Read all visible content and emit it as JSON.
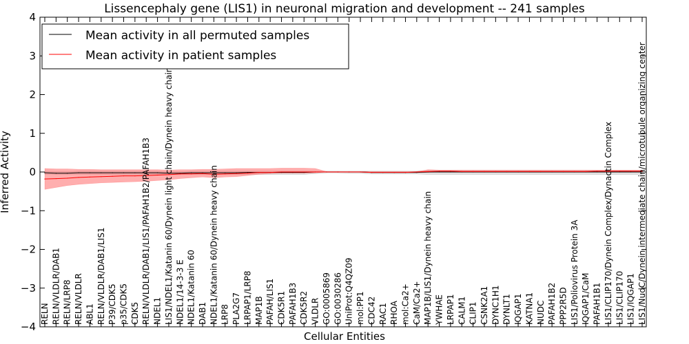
{
  "chart_data": {
    "type": "line",
    "title": "Lissencephaly gene (LIS1) in neuronal migration and development -- 241 samples",
    "xlabel": "Cellular Entities",
    "ylabel": "Inferred Activity",
    "ylim": [
      -4,
      4
    ],
    "yticks": [
      "4",
      "3",
      "2",
      "1",
      "0",
      "−1",
      "−2",
      "−3",
      "−4"
    ],
    "legend_position": "top-left",
    "categories": [
      "RELN",
      "RELN/VLDLR/DAB1",
      "RELN/LRP8",
      "RELN/VLDLR",
      "ABL1",
      "RELN/VLDLR/DAB1/LIS1",
      "P39/CDK5",
      "p35/CDK5",
      "CDK5",
      "RELN/VLDLR/DAB1/LIS1/PAFAH1B2/PAFAH1B3",
      "NDEL1",
      "LIS1/NDEL1/Katanin 60/Dynein light chain/Dynein heavy chain",
      "NDEL1/14-3-3 E",
      "NDEL1/Katanin 60",
      "DAB1",
      "NDEL1/Katanin 60/Dynein heavy chain",
      "LRP8",
      "PLA2G7",
      "LRPAP1/LRP8",
      "MAP1B",
      "PAFAH/LIS1",
      "CDK5R1",
      "PAFAH1B3",
      "CDK5R2",
      "VLDLR",
      "GO:0005869",
      "GO:0030286",
      "UniProt:Q4QZ09",
      "mol:PP1",
      "CDC42",
      "RAC1",
      "RHOA",
      "mol:Ca2+",
      "CaM/Ca2+",
      "MAP1B/LIS1/Dynein heavy chain",
      "YWHAE",
      "LRPAP1",
      "CALM1",
      "CLIP1",
      "CSNK2A1",
      "DYNC1H1",
      "DYNLT1",
      "IQGAP1",
      "KATNA1",
      "NUDC",
      "PAFAH1B2",
      "PPP2R5D",
      "LIS1/Poliovirus Protein 3A",
      "IQGAP1/CaM",
      "PAFAH1B1",
      "LIS1/CLIP170/Dynein Complex/Dynactin Complex",
      "LIS1/CLIP170",
      "LIS1/IQGAP1",
      "LIS1/NudC/Dynein intermediate chain/microtubule organizing center"
    ],
    "series": [
      {
        "name": "Mean activity in all permuted samples",
        "color": "#000000",
        "values": [
          -0.02,
          -0.03,
          -0.03,
          -0.02,
          -0.02,
          -0.02,
          -0.02,
          -0.02,
          -0.02,
          -0.02,
          -0.02,
          -0.03,
          -0.03,
          -0.02,
          -0.02,
          -0.02,
          -0.02,
          -0.02,
          -0.01,
          -0.01,
          -0.01,
          -0.01,
          -0.01,
          -0.01,
          0,
          0,
          0,
          0,
          0,
          -0.01,
          -0.01,
          -0.01,
          -0.01,
          -0.01,
          0,
          0,
          0,
          0,
          0,
          0,
          0,
          0,
          0,
          0,
          0,
          0,
          0,
          0,
          0,
          0,
          0,
          0,
          0,
          0
        ],
        "band_lower": [
          -0.06,
          -0.06,
          -0.06,
          -0.06,
          -0.06,
          -0.06,
          -0.06,
          -0.06,
          -0.06,
          -0.06,
          -0.06,
          -0.07,
          -0.07,
          -0.06,
          -0.06,
          -0.06,
          -0.06,
          -0.06,
          -0.06,
          -0.06,
          -0.06,
          -0.06,
          -0.06,
          -0.06,
          -0.04,
          -0.02,
          -0.02,
          -0.03,
          -0.03,
          -0.05,
          -0.05,
          -0.05,
          -0.05,
          -0.05,
          -0.06,
          -0.06,
          -0.06,
          -0.06,
          -0.06,
          -0.06,
          -0.06,
          -0.06,
          -0.06,
          -0.06,
          -0.06,
          -0.06,
          -0.06,
          -0.06,
          -0.06,
          -0.06,
          -0.06,
          -0.06,
          -0.06,
          -0.06
        ],
        "band_upper": [
          0.02,
          0.01,
          0.01,
          0.02,
          0.02,
          0.02,
          0.02,
          0.02,
          0.02,
          0.02,
          0.02,
          0.01,
          0.01,
          0.02,
          0.02,
          0.02,
          0.02,
          0.02,
          0.02,
          0.02,
          0.02,
          0.02,
          0.02,
          0.02,
          0.02,
          0.02,
          0.02,
          0.02,
          0.02,
          0.02,
          0.02,
          0.02,
          0.02,
          0.02,
          0.04,
          0.04,
          0.04,
          0.04,
          0.04,
          0.04,
          0.04,
          0.04,
          0.04,
          0.04,
          0.04,
          0.04,
          0.04,
          0.04,
          0.04,
          0.04,
          0.04,
          0.04,
          0.04,
          0.04
        ]
      },
      {
        "name": "Mean activity in patient samples",
        "color": "#ff0000",
        "values": [
          -0.18,
          -0.17,
          -0.16,
          -0.14,
          -0.13,
          -0.12,
          -0.11,
          -0.1,
          -0.1,
          -0.09,
          -0.08,
          -0.07,
          -0.05,
          -0.05,
          -0.04,
          -0.06,
          -0.05,
          -0.04,
          -0.03,
          -0.01,
          -0.01,
          0,
          0,
          0,
          0,
          0,
          0,
          0,
          0,
          -0.01,
          -0.01,
          -0.01,
          -0.01,
          0,
          0.01,
          0.02,
          0.02,
          0.01,
          0.01,
          0.01,
          0.01,
          0.01,
          0.01,
          0.01,
          0.01,
          0.01,
          0.01,
          0.01,
          0.01,
          0.02,
          0.02,
          0.02,
          0.02,
          0.02
        ],
        "band_lower": [
          -0.45,
          -0.4,
          -0.35,
          -0.32,
          -0.3,
          -0.28,
          -0.27,
          -0.26,
          -0.25,
          -0.24,
          -0.22,
          -0.2,
          -0.17,
          -0.15,
          -0.13,
          -0.15,
          -0.13,
          -0.12,
          -0.09,
          -0.06,
          -0.04,
          -0.03,
          -0.03,
          -0.03,
          -0.02,
          0,
          0,
          0,
          0,
          -0.01,
          -0.01,
          -0.01,
          -0.01,
          -0.01,
          -0.01,
          0,
          0,
          0,
          0,
          0,
          0,
          0,
          0,
          0,
          0,
          0,
          0,
          0,
          0,
          0,
          0,
          0,
          0,
          0
        ],
        "band_upper": [
          0.09,
          0.08,
          0.08,
          0.07,
          0.07,
          0.06,
          0.06,
          0.06,
          0.06,
          0.06,
          0.06,
          0.05,
          0.06,
          0.06,
          0.07,
          0.07,
          0.08,
          0.09,
          0.09,
          0.09,
          0.09,
          0.1,
          0.1,
          0.1,
          0.09,
          0.01,
          0.01,
          0.01,
          0.01,
          0.01,
          0.01,
          0.01,
          0.01,
          0.01,
          0.06,
          0.05,
          0.05,
          0.05,
          0.05,
          0.05,
          0.05,
          0.05,
          0.05,
          0.05,
          0.05,
          0.05,
          0.05,
          0.05,
          0.05,
          0.05,
          0.05,
          0.05,
          0.05,
          0.05
        ]
      }
    ]
  }
}
